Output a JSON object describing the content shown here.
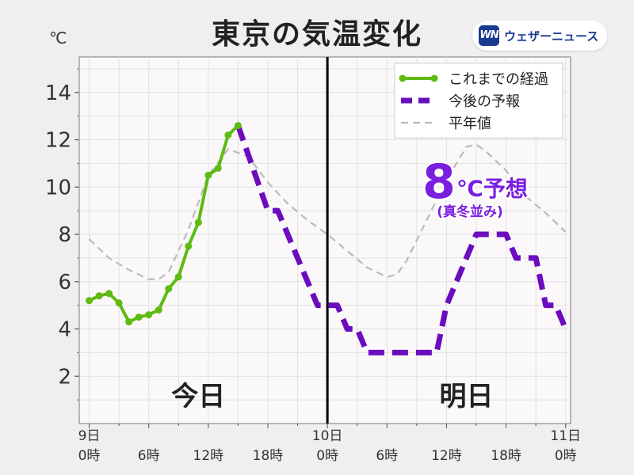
{
  "title": "東京の気温変化",
  "logo": {
    "mark": "WN",
    "text": "ウェザーニュース"
  },
  "chart_data": {
    "type": "line",
    "unit": "℃",
    "ylim": [
      0,
      15.5
    ],
    "y_ticks": [
      2,
      4,
      6,
      8,
      10,
      12,
      14
    ],
    "x_range_hours": [
      -1,
      48.5
    ],
    "x_ticks": [
      {
        "hour": 0,
        "line1": "9日",
        "line2": "0時"
      },
      {
        "hour": 6,
        "line1": "",
        "line2": "6時"
      },
      {
        "hour": 12,
        "line1": "",
        "line2": "12時"
      },
      {
        "hour": 18,
        "line1": "",
        "line2": "18時"
      },
      {
        "hour": 24,
        "line1": "10日",
        "line2": "0時"
      },
      {
        "hour": 30,
        "line1": "",
        "line2": "6時"
      },
      {
        "hour": 36,
        "line1": "",
        "line2": "12時"
      },
      {
        "hour": 42,
        "line1": "",
        "line2": "18時"
      },
      {
        "hour": 48,
        "line1": "11日",
        "line2": "0時"
      }
    ],
    "divider_hour": 24,
    "day_labels": [
      {
        "hour": 11,
        "text": "今日"
      },
      {
        "hour": 38,
        "text": "明日"
      }
    ],
    "legend": [
      {
        "text": "これまでの経過",
        "style": "observed"
      },
      {
        "text": "今後の予報",
        "style": "forecast"
      },
      {
        "text": "平年値",
        "style": "normal"
      }
    ],
    "annotation": {
      "value": "8",
      "unit_text": "℃予想",
      "sub_text": "(真冬並み)",
      "color": "#7a1ee0"
    },
    "colors": {
      "observed": "#5dbb12",
      "forecast": "#6a0dbf",
      "normal": "#bbbbbb",
      "plot_bg": "#fbf8fa"
    },
    "series": [
      {
        "name": "これまでの経過",
        "style": "observed",
        "x": [
          0,
          1,
          2,
          3,
          4,
          5,
          6,
          7,
          8,
          9,
          10,
          11,
          12,
          13,
          14,
          15
        ],
        "y": [
          5.2,
          5.4,
          5.5,
          5.1,
          4.3,
          4.5,
          4.6,
          4.8,
          5.7,
          6.2,
          7.5,
          8.5,
          10.5,
          10.8,
          12.2,
          12.6
        ]
      },
      {
        "name": "今後の予報",
        "style": "forecast",
        "x": [
          15,
          18,
          19,
          20,
          21,
          22,
          23,
          24,
          25,
          26,
          27,
          28,
          29,
          30,
          31,
          32,
          33,
          34,
          35,
          36,
          37,
          38,
          39,
          40,
          41,
          42,
          43,
          44,
          45,
          46,
          47,
          48
        ],
        "y": [
          12.6,
          9,
          9,
          8,
          7,
          6,
          5,
          5,
          5,
          4,
          4,
          3,
          3,
          3,
          3,
          3,
          3,
          3,
          3,
          5,
          6,
          7,
          8,
          8,
          8,
          8,
          7,
          7,
          7,
          5,
          5,
          4
        ]
      },
      {
        "name": "平年値",
        "style": "normal",
        "x": [
          0,
          2,
          4,
          6,
          7,
          8,
          10,
          12,
          14,
          16,
          18,
          20,
          22,
          24,
          26,
          28,
          30,
          31,
          32,
          34,
          36,
          38,
          39,
          40,
          42,
          44,
          46,
          48
        ],
        "y": [
          7.8,
          7.0,
          6.5,
          6.1,
          6.1,
          6.4,
          8.2,
          10.5,
          11.6,
          11.3,
          10.2,
          9.3,
          8.6,
          8.0,
          7.3,
          6.6,
          6.2,
          6.3,
          6.9,
          8.6,
          10.3,
          11.7,
          11.8,
          11.5,
          10.7,
          9.6,
          8.9,
          8.1
        ]
      }
    ]
  }
}
